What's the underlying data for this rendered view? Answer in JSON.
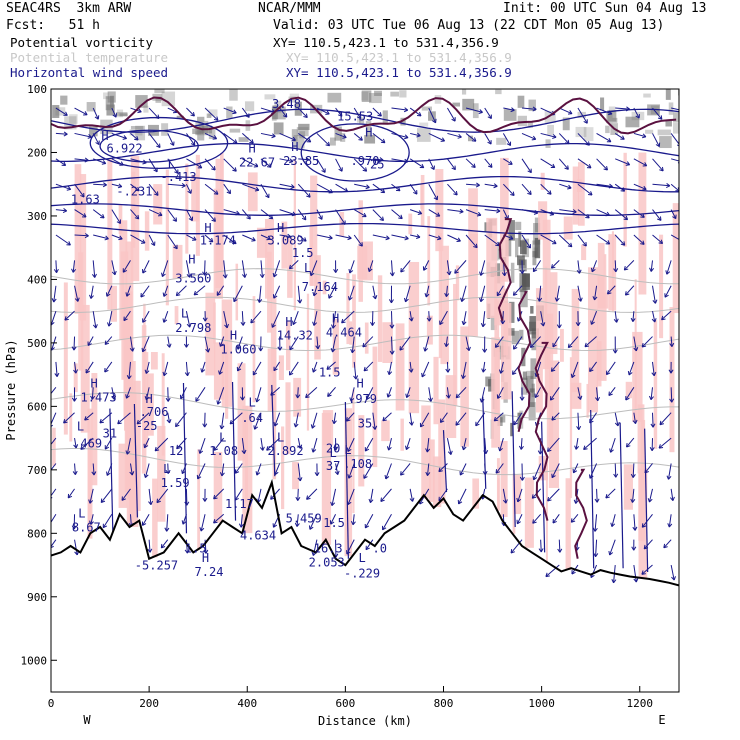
{
  "header": {
    "model": "SEAC4RS  3km ARW",
    "center": "NCAR/MMM",
    "init": "Init: 00 UTC Sun 04 Aug 13",
    "fcst": "Fcst:   51 h",
    "valid": "Valid: 03 UTC Tue 06 Aug 13 (22 CDT Mon 05 Aug 13)",
    "fields": [
      {
        "name": "Potential vorticity",
        "xy": "XY= 110.5,423.1 to 531.4,356.9",
        "color": "#000000"
      },
      {
        "name": "Potential temperature",
        "xy": "XY= 110.5,423.1 to 531.4,356.9",
        "color": "#c8c8c8"
      },
      {
        "name": "Horizontal wind speed",
        "xy": "XY= 110.5,423.1 to 531.4,356.9",
        "color": "#1a1a8c"
      }
    ]
  },
  "chart_data": {
    "type": "cross-section",
    "xlabel": "Distance (km)",
    "ylabel": "Pressure (hPa)",
    "xlim": [
      0,
      1280
    ],
    "ylim": [
      1050,
      100
    ],
    "xticks": [
      0,
      200,
      400,
      600,
      800,
      1000,
      1200
    ],
    "yticks": [
      100,
      200,
      300,
      400,
      500,
      600,
      700,
      800,
      900,
      1000
    ],
    "end_labels": {
      "left": "W",
      "right": "E"
    },
    "terrain_surface_pressure": {
      "x": [
        0,
        20,
        40,
        60,
        80,
        100,
        120,
        140,
        160,
        180,
        200,
        230,
        260,
        290,
        310,
        330,
        350,
        370,
        390,
        410,
        430,
        450,
        470,
        490,
        510,
        540,
        560,
        580,
        600,
        620,
        640,
        660,
        680,
        700,
        720,
        740,
        760,
        780,
        800,
        820,
        840,
        860,
        880,
        900,
        920,
        940,
        960,
        980,
        1000,
        1020,
        1040,
        1060,
        1080,
        1100,
        1120,
        1140,
        1160,
        1180,
        1200,
        1220,
        1240,
        1260,
        1280
      ],
      "p": [
        835,
        830,
        820,
        830,
        800,
        790,
        810,
        770,
        790,
        780,
        840,
        830,
        800,
        830,
        820,
        800,
        780,
        790,
        800,
        740,
        760,
        720,
        800,
        790,
        820,
        830,
        810,
        840,
        850,
        830,
        810,
        820,
        800,
        790,
        780,
        760,
        740,
        760,
        745,
        770,
        780,
        760,
        740,
        750,
        780,
        800,
        820,
        830,
        840,
        850,
        860,
        855,
        860,
        865,
        858,
        862,
        865,
        868,
        870,
        872,
        875,
        878,
        882
      ]
    },
    "isotherms_labels": [
      {
        "text": "H",
        "x": 110,
        "p": 180
      },
      {
        "text": "6.922",
        "x": 150,
        "p": 200
      },
      {
        "text": "1.63",
        "x": 70,
        "p": 280
      },
      {
        "text": "-.231",
        "x": 170,
        "p": 268
      },
      {
        "text": "L",
        "x": 245,
        "p": 225
      },
      {
        "text": "-.413",
        "x": 260,
        "p": 245
      },
      {
        "text": "H",
        "x": 410,
        "p": 200
      },
      {
        "text": "22.67",
        "x": 420,
        "p": 222
      },
      {
        "text": "H",
        "x": 497,
        "p": 198
      },
      {
        "text": "23.85",
        "x": 510,
        "p": 220
      },
      {
        "text": "3.48",
        "x": 480,
        "p": 130
      },
      {
        "text": "15.53",
        "x": 620,
        "p": 150
      },
      {
        "text": ".970",
        "x": 640,
        "p": 220
      },
      {
        "text": "25",
        "x": 665,
        "p": 225
      },
      {
        "text": "H",
        "x": 320,
        "p": 325
      },
      {
        "text": "1.174",
        "x": 340,
        "p": 345
      },
      {
        "text": "H",
        "x": 468,
        "p": 325
      },
      {
        "text": "3.089",
        "x": 478,
        "p": 345
      },
      {
        "text": "H",
        "x": 287,
        "p": 375
      },
      {
        "text": "3.560",
        "x": 290,
        "p": 405
      },
      {
        "text": "L",
        "x": 272,
        "p": 460
      },
      {
        "text": "2.798",
        "x": 290,
        "p": 483
      },
      {
        "text": "H",
        "x": 372,
        "p": 495
      },
      {
        "text": "1.060",
        "x": 382,
        "p": 517
      },
      {
        "text": "H",
        "x": 485,
        "p": 473
      },
      {
        "text": "14.32",
        "x": 497,
        "p": 495
      },
      {
        "text": "L",
        "x": 523,
        "p": 388
      },
      {
        "text": "7.164",
        "x": 548,
        "p": 418
      },
      {
        "text": "H",
        "x": 580,
        "p": 468
      },
      {
        "text": "4.464",
        "x": 597,
        "p": 490
      },
      {
        "text": "H",
        "x": 88,
        "p": 570
      },
      {
        "text": "1.473",
        "x": 97,
        "p": 592
      },
      {
        "text": "H",
        "x": 200,
        "p": 595
      },
      {
        "text": ".706",
        "x": 210,
        "p": 615
      },
      {
        "text": "-25",
        "x": 195,
        "p": 637
      },
      {
        "text": "L",
        "x": 60,
        "p": 638
      },
      {
        "text": "469",
        "x": 82,
        "p": 665
      },
      {
        "text": "31",
        "x": 120,
        "p": 649
      },
      {
        "text": "L",
        "x": 410,
        "p": 600
      },
      {
        "text": ".64",
        "x": 410,
        "p": 625
      },
      {
        "text": "H",
        "x": 630,
        "p": 570
      },
      {
        "text": ".979",
        "x": 635,
        "p": 595
      },
      {
        "text": "L",
        "x": 350,
        "p": 655
      },
      {
        "text": "1.08",
        "x": 352,
        "p": 677
      },
      {
        "text": "L",
        "x": 468,
        "p": 655
      },
      {
        "text": "2.892",
        "x": 478,
        "p": 677
      },
      {
        "text": "L",
        "x": 575,
        "p": 680
      },
      {
        "text": "37",
        "x": 575,
        "p": 700
      },
      {
        "text": "L",
        "x": 605,
        "p": 675
      },
      {
        "text": ".108",
        "x": 625,
        "p": 697
      },
      {
        "text": "L",
        "x": 236,
        "p": 705
      },
      {
        "text": "1.59",
        "x": 253,
        "p": 727
      },
      {
        "text": "L",
        "x": 63,
        "p": 775
      },
      {
        "text": "8.67",
        "x": 72,
        "p": 797
      },
      {
        "text": "H",
        "x": 315,
        "p": 845
      },
      {
        "text": "7.24",
        "x": 322,
        "p": 867
      },
      {
        "text": "-5.257",
        "x": 215,
        "p": 857
      },
      {
        "text": "1.5",
        "x": 295,
        "p": 830
      },
      {
        "text": "1.17",
        "x": 384,
        "p": 760
      },
      {
        "text": "4.634",
        "x": 422,
        "p": 810
      },
      {
        "text": "5.459",
        "x": 515,
        "p": 783
      },
      {
        "text": "16.3",
        "x": 565,
        "p": 830
      },
      {
        "text": "2.053",
        "x": 562,
        "p": 852
      },
      {
        "text": "1.5",
        "x": 577,
        "p": 790
      },
      {
        "text": ".0",
        "x": 670,
        "p": 830
      },
      {
        "text": "L",
        "x": 634,
        "p": 845
      },
      {
        "text": "-.229",
        "x": 634,
        "p": 870
      },
      {
        "text": "12",
        "x": 255,
        "p": 677
      },
      {
        "text": "1.5",
        "x": 513,
        "p": 365
      },
      {
        "text": "1.5",
        "x": 568,
        "p": 553
      },
      {
        "text": "35",
        "x": 640,
        "p": 633
      },
      {
        "text": "20",
        "x": 575,
        "p": 673
      },
      {
        "text": "H",
        "x": 648,
        "p": 175
      }
    ]
  },
  "colors": {
    "pv_fill": "#f9c6c6",
    "wind": "#1a1a8c",
    "pv_contour": "#5a1140",
    "theta": "#bdbdbd",
    "terrain": "#000000",
    "gray_shade": "#7a7a7a"
  }
}
